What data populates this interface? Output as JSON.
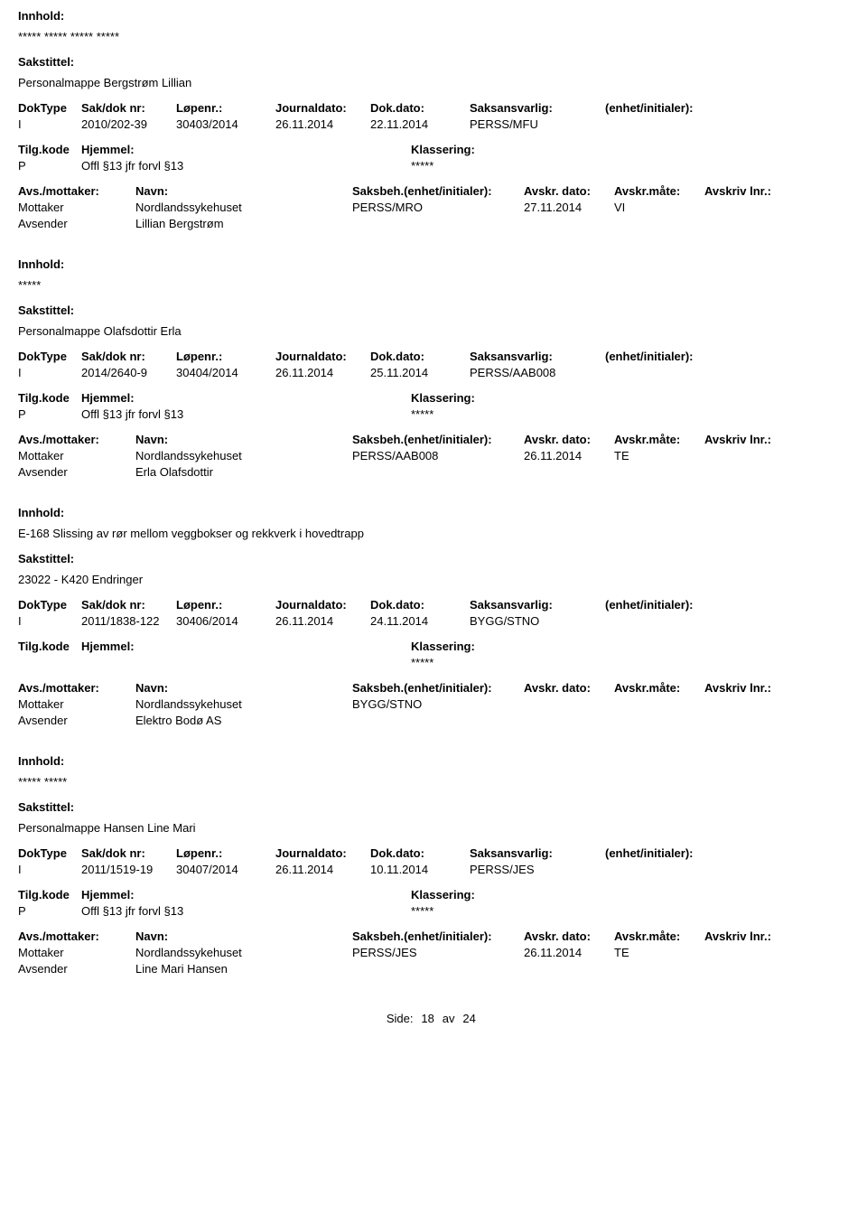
{
  "labels": {
    "innhold": "Innhold:",
    "sakstittel": "Sakstittel:",
    "doktype": "DokType",
    "sakdok": "Sak/dok nr:",
    "lopenr": "Løpenr.:",
    "journaldato": "Journaldato:",
    "dokdato": "Dok.dato:",
    "saksansvarlig": "Saksansvarlig:",
    "enhet": "(enhet/initialer):",
    "tilgkode": "Tilg.kode",
    "hjemmel": "Hjemmel:",
    "klassering": "Klassering:",
    "avsmottaker": "Avs./mottaker:",
    "navn": "Navn:",
    "saksbeh": "Saksbeh.(enhet/initialer):",
    "avskrdato": "Avskr. dato:",
    "avskrmate": "Avskr.måte:",
    "avskrivlnr": "Avskriv lnr.:",
    "mottaker": "Mottaker",
    "avsender": "Avsender"
  },
  "footer": {
    "prefix": "Side:",
    "page": "18",
    "sep": "av",
    "total": "24"
  },
  "entries": [
    {
      "innhold_value": "***** ***** ***** *****",
      "sakstittel_value": "Personalmappe Bergstrøm Lillian",
      "doktype": "I",
      "sakdok": "2010/202-39",
      "lopenr": "30403/2014",
      "journaldato": "26.11.2014",
      "dokdato": "22.11.2014",
      "saksansvarlig": "PERSS/MFU",
      "tilgkode": "P",
      "hjemmel": "Offl §13 jfr forvl §13",
      "klassering_value": "*****",
      "parties": [
        {
          "role": "Mottaker",
          "navn": "Nordlandssykehuset",
          "saksbeh": "PERSS/MRO",
          "adate": "27.11.2014",
          "amate": "VI"
        },
        {
          "role": "Avsender",
          "navn": "Lillian Bergstrøm",
          "saksbeh": "",
          "adate": "",
          "amate": ""
        }
      ]
    },
    {
      "innhold_value": "*****",
      "sakstittel_value": "Personalmappe Olafsdottir Erla",
      "doktype": "I",
      "sakdok": "2014/2640-9",
      "lopenr": "30404/2014",
      "journaldato": "26.11.2014",
      "dokdato": "25.11.2014",
      "saksansvarlig": "PERSS/AAB008",
      "tilgkode": "P",
      "hjemmel": "Offl §13 jfr forvl §13",
      "klassering_value": "*****",
      "parties": [
        {
          "role": "Mottaker",
          "navn": "Nordlandssykehuset",
          "saksbeh": "PERSS/AAB008",
          "adate": "26.11.2014",
          "amate": "TE"
        },
        {
          "role": "Avsender",
          "navn": "Erla Olafsdottir",
          "saksbeh": "",
          "adate": "",
          "amate": ""
        }
      ]
    },
    {
      "innhold_value": "E-168 Slissing av rør mellom veggbokser og rekkverk i hovedtrapp",
      "sakstittel_value": "23022 - K420 Endringer",
      "doktype": "I",
      "sakdok": "2011/1838-122",
      "lopenr": "30406/2014",
      "journaldato": "26.11.2014",
      "dokdato": "24.11.2014",
      "saksansvarlig": "BYGG/STNO",
      "tilgkode": "",
      "hjemmel": "",
      "klassering_value": "*****",
      "parties": [
        {
          "role": "Mottaker",
          "navn": "Nordlandssykehuset",
          "saksbeh": "BYGG/STNO",
          "adate": "",
          "amate": ""
        },
        {
          "role": "Avsender",
          "navn": "Elektro Bodø AS",
          "saksbeh": "",
          "adate": "",
          "amate": ""
        }
      ]
    },
    {
      "innhold_value": "***** *****",
      "sakstittel_value": "Personalmappe Hansen Line Mari",
      "doktype": "I",
      "sakdok": "2011/1519-19",
      "lopenr": "30407/2014",
      "journaldato": "26.11.2014",
      "dokdato": "10.11.2014",
      "saksansvarlig": "PERSS/JES",
      "tilgkode": "P",
      "hjemmel": "Offl §13 jfr forvl §13",
      "klassering_value": "*****",
      "parties": [
        {
          "role": "Mottaker",
          "navn": "Nordlandssykehuset",
          "saksbeh": "PERSS/JES",
          "adate": "26.11.2014",
          "amate": "TE"
        },
        {
          "role": "Avsender",
          "navn": "Line Mari Hansen",
          "saksbeh": "",
          "adate": "",
          "amate": ""
        }
      ]
    }
  ]
}
